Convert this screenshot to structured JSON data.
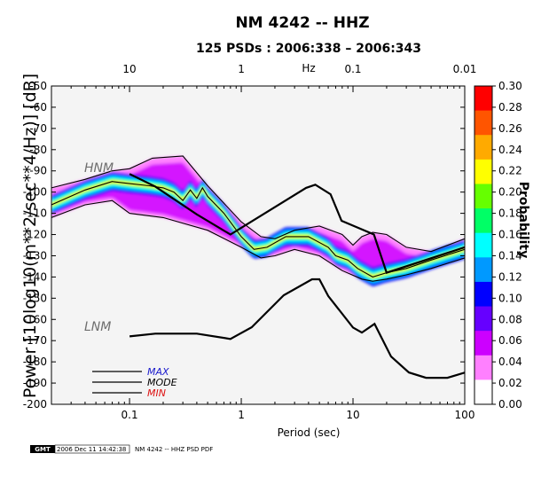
{
  "chart_data": {
    "type": "heatmap",
    "title": "NM 4242 -- HHZ",
    "subtitle": "125 PSDs : 2006:338 – 2006:343",
    "xlabel": "Period (sec)",
    "ylabel": "Power [10log10(m**2/sec**4/Hz)] [dB]",
    "top_axis_label": "Hz",
    "xscale": "log",
    "xlim": [
      0.02,
      100
    ],
    "ylim": [
      -200,
      -50
    ],
    "x_ticks": [
      0.1,
      1,
      10,
      100
    ],
    "x_tick_labels": [
      "0.1",
      "1",
      "10",
      "100"
    ],
    "top_ticks": [
      10,
      1,
      0.1,
      0.01
    ],
    "top_tick_labels": [
      "10",
      "1",
      "0.1",
      "0.01"
    ],
    "y_ticks": [
      -50,
      -60,
      -70,
      -80,
      -90,
      -100,
      -110,
      -120,
      -130,
      -140,
      -150,
      -160,
      -170,
      -180,
      -190,
      -200
    ],
    "colorbar": {
      "label": "Probability",
      "range": [
        0,
        0.3
      ],
      "ticks": [
        "0.30",
        "0.28",
        "0.26",
        "0.24",
        "0.22",
        "0.20",
        "0.18",
        "0.16",
        "0.14",
        "0.12",
        "0.10",
        "0.08",
        "0.06",
        "0.04",
        "0.02",
        "0.00"
      ],
      "colors": [
        "#ffffff",
        "#ff80ff",
        "#cc00ff",
        "#6600ff",
        "#0000ff",
        "#0099ff",
        "#00ffff",
        "#00ff66",
        "#66ff00",
        "#ffff00",
        "#ffaa00",
        "#ff5500",
        "#ff0000"
      ]
    },
    "series": [
      {
        "name": "HNM",
        "x": [
          0.1,
          0.17,
          0.4,
          0.8,
          3.8,
          4.6,
          6.3,
          7.9,
          15.4,
          20,
          100
        ],
        "y": [
          -91.5,
          -97.4,
          -110.5,
          -120,
          -98,
          -96.5,
          -101,
          -113.5,
          -120,
          -138,
          -126
        ]
      },
      {
        "name": "LNM",
        "x": [
          0.1,
          0.17,
          0.4,
          0.8,
          1.24,
          2.4,
          4.3,
          5,
          6,
          10,
          12,
          15.6,
          21.9,
          31.6,
          45,
          70,
          101
        ],
        "y": [
          -168,
          -166.7,
          -166.7,
          -169.2,
          -163.7,
          -148.6,
          -141.1,
          -141.1,
          -149,
          -163.8,
          -166.2,
          -162.1,
          -177.5,
          -185,
          -187.5,
          -187.5,
          -185
        ]
      },
      {
        "name": "MAX",
        "x": [
          0.02,
          0.04,
          0.07,
          0.1,
          0.16,
          0.3,
          0.5,
          1,
          1.5,
          2,
          3,
          5,
          8,
          10,
          12,
          15,
          20,
          30,
          50,
          100
        ],
        "y": [
          -98,
          -94,
          -90,
          -89,
          -84,
          -83,
          -97,
          -114,
          -121,
          -122,
          -118,
          -116,
          -120,
          -125,
          -121,
          -119,
          -120,
          -126,
          -128,
          -122
        ]
      },
      {
        "name": "MODE",
        "x": [
          0.02,
          0.04,
          0.07,
          0.1,
          0.15,
          0.2,
          0.25,
          0.3,
          0.35,
          0.4,
          0.45,
          0.5,
          0.7,
          1,
          1.3,
          1.7,
          2.5,
          4,
          6,
          7,
          9,
          11,
          15,
          20,
          30,
          50,
          100
        ],
        "y": [
          -106,
          -99,
          -95,
          -96,
          -97,
          -98,
          -100,
          -104,
          -99,
          -103,
          -98,
          -102,
          -110,
          -121,
          -127,
          -126,
          -121,
          -121,
          -126,
          -130,
          -132,
          -136,
          -140,
          -138,
          -136,
          -132,
          -127
        ]
      },
      {
        "name": "MIN",
        "x": [
          0.02,
          0.04,
          0.07,
          0.1,
          0.2,
          0.5,
          1,
          1.5,
          2,
          3,
          5,
          8,
          12,
          15,
          20,
          30,
          50,
          100
        ],
        "y": [
          -112,
          -106,
          -104,
          -110,
          -112,
          -118,
          -126,
          -131,
          -130,
          -127,
          -130,
          -137,
          -141,
          -142,
          -141,
          -139,
          -136,
          -131
        ]
      }
    ],
    "legend": [
      "MAX",
      "MODE",
      "MIN"
    ]
  },
  "footer": {
    "logo_text": "GMT",
    "timestamp": "2006 Dec 11 14:42:38",
    "caption": "NM 4242 -- HHZ PSD PDF"
  },
  "colors": {
    "max_text": "#1a1acc",
    "mode_text": "#000000",
    "min_text": "#dd1111",
    "ref_label": "#6e6e6e",
    "background": "#f4f4f4"
  }
}
